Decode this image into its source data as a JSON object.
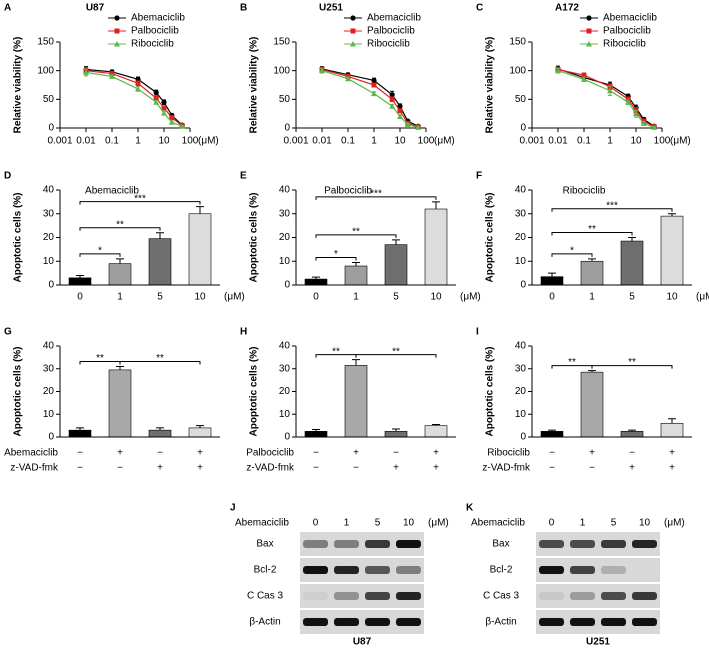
{
  "chart_data": [
    {
      "type": "line",
      "panel": "A",
      "title": "U87",
      "xlabel": "(μM)",
      "ylabel": "Relative viability (%)",
      "xscale": "log",
      "legend": "upper right",
      "x": [
        0.01,
        0.1,
        1,
        5,
        10,
        20,
        50
      ],
      "xlim": [
        0.001,
        100
      ],
      "xticks": [
        0.001,
        0.01,
        0.1,
        1,
        10,
        100
      ],
      "ylim": [
        0,
        150
      ],
      "yticks": [
        0,
        50,
        100,
        150
      ],
      "series": [
        {
          "name": "Abemaciclib",
          "color": "#000000",
          "marker": "circle",
          "values": [
            102,
            98,
            85,
            62,
            45,
            22,
            5
          ],
          "errors": [
            5,
            3,
            4,
            4,
            4,
            3,
            1
          ]
        },
        {
          "name": "Palbociclib",
          "color": "#e02020",
          "marker": "square",
          "values": [
            100,
            95,
            78,
            52,
            35,
            18,
            4
          ],
          "errors": [
            5,
            3,
            4,
            4,
            3,
            3,
            1
          ]
        },
        {
          "name": "Ribociclib",
          "color": "#5cb84a",
          "marker": "triangle",
          "values": [
            97,
            90,
            68,
            45,
            26,
            10,
            3
          ],
          "errors": [
            6,
            3,
            4,
            3,
            3,
            2,
            1
          ]
        }
      ]
    },
    {
      "type": "line",
      "panel": "B",
      "title": "U251",
      "xlabel": "(μM)",
      "ylabel": "Relative viability (%)",
      "xscale": "log",
      "legend": "upper right",
      "x": [
        0.01,
        0.1,
        1,
        5,
        10,
        20,
        50
      ],
      "xlim": [
        0.001,
        100
      ],
      "xticks": [
        0.001,
        0.01,
        0.1,
        1,
        10,
        100
      ],
      "ylim": [
        0,
        150
      ],
      "yticks": [
        0,
        50,
        100,
        150
      ],
      "series": [
        {
          "name": "Abemaciclib",
          "color": "#000000",
          "marker": "circle",
          "values": [
            103,
            93,
            83,
            58,
            38,
            12,
            3
          ],
          "errors": [
            4,
            3,
            4,
            6,
            4,
            2,
            1
          ]
        },
        {
          "name": "Palbociclib",
          "color": "#e02020",
          "marker": "square",
          "values": [
            102,
            90,
            75,
            50,
            30,
            8,
            2
          ],
          "errors": [
            4,
            3,
            3,
            4,
            3,
            2,
            1
          ]
        },
        {
          "name": "Ribociclib",
          "color": "#5cb84a",
          "marker": "triangle",
          "values": [
            100,
            86,
            60,
            38,
            20,
            6,
            1
          ],
          "errors": [
            4,
            3,
            3,
            3,
            3,
            2,
            1
          ]
        }
      ]
    },
    {
      "type": "line",
      "panel": "C",
      "title": "A172",
      "xlabel": "(μM)",
      "ylabel": "Relative viability (%)",
      "xscale": "log",
      "legend": "upper right",
      "x": [
        0.01,
        0.1,
        1,
        5,
        10,
        20,
        50
      ],
      "xlim": [
        0.001,
        100
      ],
      "xticks": [
        0.001,
        0.01,
        0.1,
        1,
        10,
        100
      ],
      "ylim": [
        0,
        150
      ],
      "yticks": [
        0,
        50,
        100,
        150
      ],
      "series": [
        {
          "name": "Abemaciclib",
          "color": "#000000",
          "marker": "circle",
          "values": [
            103,
            88,
            75,
            55,
            35,
            15,
            3
          ],
          "errors": [
            5,
            6,
            5,
            4,
            5,
            3,
            1
          ]
        },
        {
          "name": "Palbociclib",
          "color": "#e02020",
          "marker": "square",
          "values": [
            102,
            92,
            72,
            50,
            30,
            12,
            2
          ],
          "errors": [
            4,
            4,
            5,
            4,
            6,
            3,
            1
          ]
        },
        {
          "name": "Ribociclib",
          "color": "#5cb84a",
          "marker": "triangle",
          "values": [
            100,
            85,
            65,
            45,
            25,
            8,
            1
          ],
          "errors": [
            4,
            4,
            8,
            4,
            6,
            3,
            1
          ]
        }
      ]
    },
    {
      "type": "bar",
      "panel": "D",
      "subtitle": "Abemaciclib",
      "xlabel": "(μM)",
      "ylabel": "Apoptotic cells (%)",
      "categories": [
        0,
        1,
        5,
        10
      ],
      "values": [
        3,
        9,
        19.5,
        30
      ],
      "errors": [
        1,
        2,
        2.5,
        3
      ],
      "colors": [
        "#000000",
        "#9e9e9e",
        "#6e6e6e",
        "#dcdcdc"
      ],
      "ylim": [
        0,
        40
      ],
      "yticks": [
        0,
        10,
        20,
        30,
        40
      ],
      "brackets": [
        {
          "between": [
            0,
            1
          ],
          "label": "*"
        },
        {
          "between": [
            0,
            2
          ],
          "label": "**"
        },
        {
          "between": [
            0,
            3
          ],
          "label": "***"
        }
      ]
    },
    {
      "type": "bar",
      "panel": "E",
      "subtitle": "Palbociclib",
      "xlabel": "(μM)",
      "ylabel": "Apoptotic cells (%)",
      "categories": [
        0,
        1,
        5,
        10
      ],
      "values": [
        2.5,
        8,
        17,
        32
      ],
      "errors": [
        0.8,
        1.5,
        2,
        3
      ],
      "colors": [
        "#000000",
        "#9e9e9e",
        "#6e6e6e",
        "#dcdcdc"
      ],
      "ylim": [
        0,
        40
      ],
      "yticks": [
        0,
        10,
        20,
        30,
        40
      ],
      "brackets": [
        {
          "between": [
            0,
            1
          ],
          "label": "*"
        },
        {
          "between": [
            0,
            2
          ],
          "label": "**"
        },
        {
          "between": [
            0,
            3
          ],
          "label": "***"
        }
      ]
    },
    {
      "type": "bar",
      "panel": "F",
      "subtitle": "Ribociclib",
      "xlabel": "(μM)",
      "ylabel": "Apoptotic cells (%)",
      "categories": [
        0,
        1,
        5,
        10
      ],
      "values": [
        3.5,
        10,
        18.5,
        29
      ],
      "errors": [
        1.5,
        1,
        1.5,
        1
      ],
      "colors": [
        "#000000",
        "#9e9e9e",
        "#6e6e6e",
        "#dcdcdc"
      ],
      "ylim": [
        0,
        40
      ],
      "yticks": [
        0,
        10,
        20,
        30,
        40
      ],
      "brackets": [
        {
          "between": [
            0,
            1
          ],
          "label": "*"
        },
        {
          "between": [
            0,
            2
          ],
          "label": "**"
        },
        {
          "between": [
            0,
            3
          ],
          "label": "***"
        }
      ]
    },
    {
      "type": "bar",
      "panel": "G",
      "ylabel": "Apoptotic cells (%)",
      "conditions": [
        {
          "name": "Abemaciclib",
          "signs": [
            "−",
            "+",
            "−",
            "+"
          ]
        },
        {
          "name": "z-VAD-fmk",
          "signs": [
            "−",
            "−",
            "+",
            "+"
          ]
        }
      ],
      "values": [
        3,
        29.5,
        3,
        4
      ],
      "errors": [
        1,
        1.5,
        1,
        1
      ],
      "colors": [
        "#000000",
        "#a8a8a8",
        "#6e6e6e",
        "#dcdcdc"
      ],
      "ylim": [
        0,
        40
      ],
      "yticks": [
        0,
        10,
        20,
        30,
        40
      ],
      "brackets": [
        {
          "between": [
            0,
            1
          ],
          "label": "**"
        },
        {
          "between": [
            1,
            3
          ],
          "label": "**"
        }
      ]
    },
    {
      "type": "bar",
      "panel": "H",
      "ylabel": "Apoptotic cells (%)",
      "conditions": [
        {
          "name": "Palbociclib",
          "signs": [
            "−",
            "+",
            "−",
            "+"
          ]
        },
        {
          "name": "z-VAD-fmk",
          "signs": [
            "−",
            "−",
            "+",
            "+"
          ]
        }
      ],
      "values": [
        2.5,
        31.5,
        2.5,
        5
      ],
      "errors": [
        0.8,
        2.5,
        1,
        0.5
      ],
      "colors": [
        "#000000",
        "#a8a8a8",
        "#6e6e6e",
        "#dcdcdc"
      ],
      "ylim": [
        0,
        40
      ],
      "yticks": [
        0,
        10,
        20,
        30,
        40
      ],
      "brackets": [
        {
          "between": [
            0,
            1
          ],
          "label": "**"
        },
        {
          "between": [
            1,
            3
          ],
          "label": "**"
        }
      ]
    },
    {
      "type": "bar",
      "panel": "I",
      "ylabel": "Apoptotic cells (%)",
      "conditions": [
        {
          "name": "Ribociclib",
          "signs": [
            "−",
            "+",
            "−",
            "+"
          ]
        },
        {
          "name": "z-VAD-fmk",
          "signs": [
            "−",
            "−",
            "+",
            "+"
          ]
        }
      ],
      "values": [
        2.5,
        28.5,
        2.5,
        6
      ],
      "errors": [
        0.5,
        0.7,
        0.5,
        2
      ],
      "colors": [
        "#000000",
        "#a8a8a8",
        "#6e6e6e",
        "#dcdcdc"
      ],
      "ylim": [
        0,
        40
      ],
      "yticks": [
        0,
        10,
        20,
        30,
        40
      ],
      "brackets": [
        {
          "between": [
            0,
            1
          ],
          "label": "**"
        },
        {
          "between": [
            1,
            3
          ],
          "label": "**"
        }
      ]
    }
  ],
  "blots": [
    {
      "panel": "J",
      "treatment": "Abemaciclib",
      "lanes": [
        0,
        1,
        5,
        10
      ],
      "unit": "(μM)",
      "rows": [
        "Bax",
        "Bcl-2",
        "C Cas 3",
        "β-Actin"
      ],
      "cell_line": "U87"
    },
    {
      "panel": "K",
      "treatment": "Abemaciclib",
      "lanes": [
        0,
        1,
        5,
        10
      ],
      "unit": "(μM)",
      "rows": [
        "Bax",
        "Bcl-2",
        "C Cas 3",
        "β-Actin"
      ],
      "cell_line": "U251"
    }
  ]
}
